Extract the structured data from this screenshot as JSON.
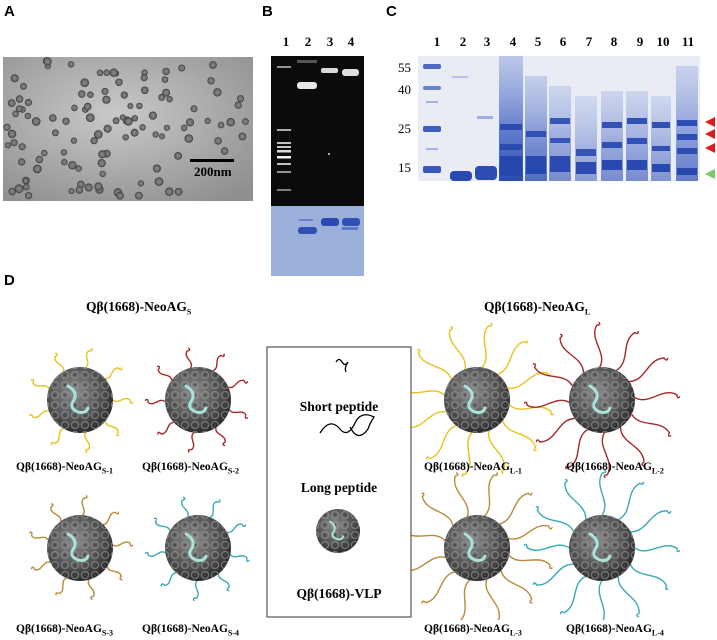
{
  "panels": {
    "a": "A",
    "b": "B",
    "c": "C",
    "d": "D"
  },
  "panel_a": {
    "scale_label": "200nm"
  },
  "panel_b": {
    "lanes": [
      "1",
      "2",
      "3",
      "4"
    ]
  },
  "panel_c": {
    "lanes": [
      "1",
      "2",
      "3",
      "4",
      "5",
      "6",
      "7",
      "8",
      "9",
      "10",
      "11"
    ],
    "markers": [
      "55",
      "40",
      "25",
      "15"
    ]
  },
  "panel_d": {
    "title_short_prefix": "Qβ(1668)-NeoAG",
    "title_short_sub": "S",
    "title_long_prefix": "Qβ(1668)-NeoAG",
    "title_long_sub": "L",
    "legend": {
      "short": "Short peptide",
      "long": "Long peptide",
      "vlp": "Qβ(1668)-VLP"
    },
    "captions": [
      {
        "prefix": "Qβ(1668)-NeoAG",
        "sub": "S-1"
      },
      {
        "prefix": "Qβ(1668)-NeoAG",
        "sub": "S-2"
      },
      {
        "prefix": "Qβ(1668)-NeoAG",
        "sub": "S-3"
      },
      {
        "prefix": "Qβ(1668)-NeoAG",
        "sub": "S-4"
      },
      {
        "prefix": "Qβ(1668)-NeoAG",
        "sub": "L-1"
      },
      {
        "prefix": "Qβ(1668)-NeoAG",
        "sub": "L-2"
      },
      {
        "prefix": "Qβ(1668)-NeoAG",
        "sub": "L-3"
      },
      {
        "prefix": "Qβ(1668)-NeoAG",
        "sub": "L-4"
      }
    ]
  },
  "colors": {
    "yellow": "#e8c21c",
    "red": "#a42a2a",
    "orange": "#b88a3a",
    "teal": "#3aa9b8",
    "gel_blue": "#3c5fc4",
    "red_arrow": "#e01a1a",
    "green_arrow": "#7bc96a"
  }
}
